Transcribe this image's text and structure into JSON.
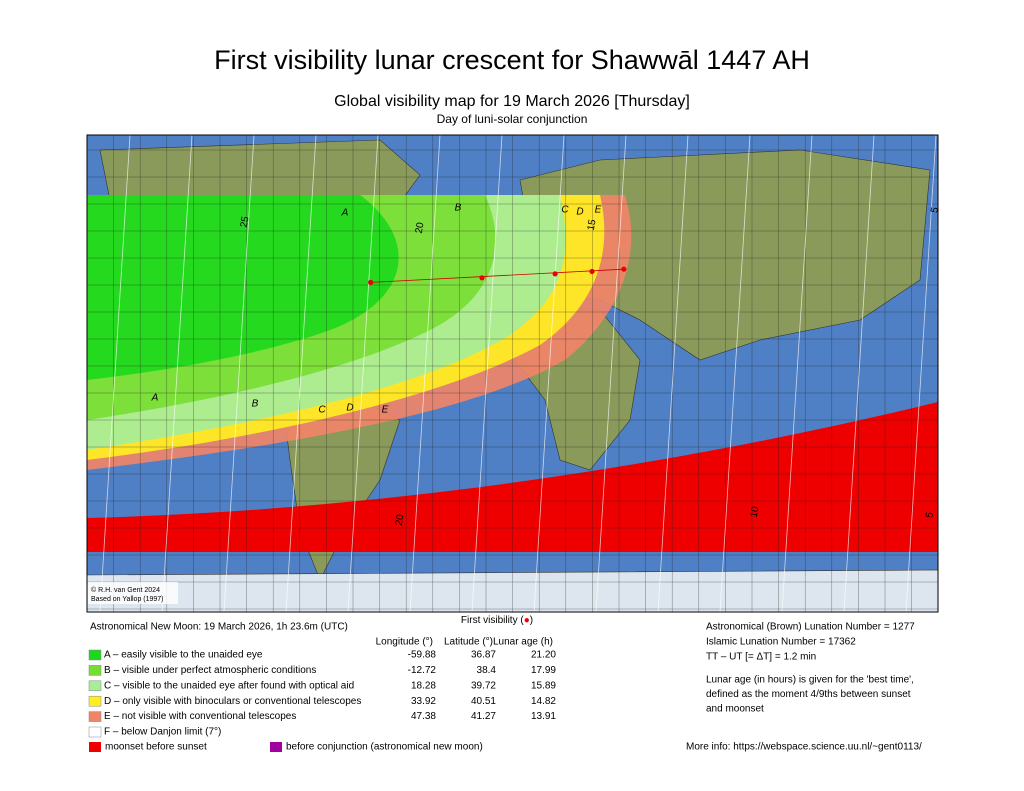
{
  "title": "First visibility lunar crescent for Shawwāl 1447 AH",
  "subtitle": "Global visibility map for 19 March 2026 [Thursday]",
  "subtitle2": "Day of luni-solar conjunction",
  "map": {
    "credit": [
      "© R.H. van Gent 2024",
      "Based on Yallop (1997)"
    ],
    "zone_labels": [
      "A",
      "B",
      "C",
      "D",
      "E",
      "A",
      "B",
      "C",
      "D",
      "E"
    ],
    "contour_labels": [
      "25",
      "20",
      "15",
      "20",
      "10",
      "5",
      "5"
    ]
  },
  "new_moon": "Astronomical New Moon: 19 March 2026, 1h 23.6m (UTC)",
  "first_visibility": [
    "First visibility (",
    "●",
    ")"
  ],
  "columns": [
    "Longitude (°)",
    "Latitude (°)",
    "Lunar age (h)"
  ],
  "legend": {
    "rows": [
      {
        "label": "A – easily visible to the unaided eye",
        "color": "#1cd81c",
        "longitude": -59.88,
        "latitude": 36.87,
        "age": "21.20"
      },
      {
        "label": "B – visible under perfect atmospheric conditions",
        "color": "#77dd33",
        "longitude": -12.72,
        "latitude": 38.4,
        "age": "17.99"
      },
      {
        "label": "C – visible to the unaided eye after found with optical aid",
        "color": "#a6ee99",
        "longitude": 18.28,
        "latitude": 39.72,
        "age": "15.89"
      },
      {
        "label": "D – only visible with binoculars or conventional telescopes",
        "color": "#ffee22",
        "longitude": 33.92,
        "latitude": 40.51,
        "age": "14.82"
      },
      {
        "label": "E – not visible with conventional telescopes",
        "color": "#f08468",
        "longitude": 47.38,
        "latitude": 41.27,
        "age": "13.91"
      },
      {
        "label": "F – below Danjon limit (7°)",
        "color": "#ffffff"
      }
    ],
    "extra": [
      {
        "label": "moonset before sunset",
        "color": "#ee0000"
      },
      {
        "label": "before conjunction (astronomical new moon)",
        "color": "#a000a0"
      }
    ]
  },
  "info": [
    "Astronomical (Brown) Lunation Number = 1277",
    "Islamic Lunation Number = 17362",
    "TT – UT [= ΔT] = 1.2 min"
  ],
  "note": [
    "Lunar age (in hours) is given for the 'best time',",
    "defined as the moment 4/9ths between sunset",
    "and moonset"
  ],
  "more_info": "More info: https://webspace.science.uu.nl/~gent0113/"
}
